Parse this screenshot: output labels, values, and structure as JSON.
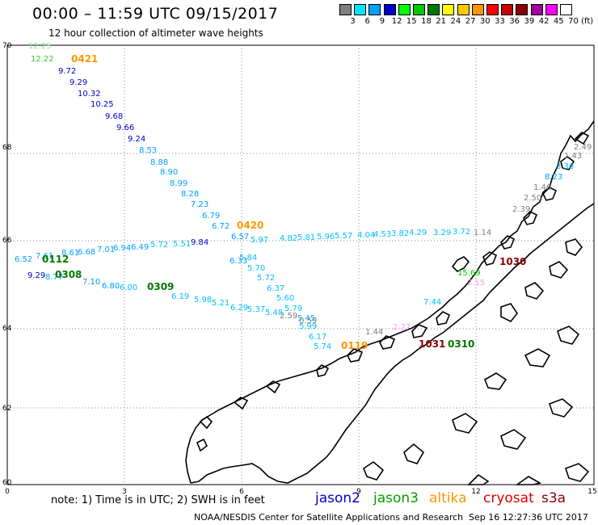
{
  "header": {
    "title": "00:00 – 11:59 UTC 09/15/2017",
    "subtitle": "12 hour collection of altimeter wave heights"
  },
  "legend": {
    "unit": "(ft)",
    "bins": [
      {
        "label": "3",
        "color": "#7f7f7f"
      },
      {
        "label": "6",
        "color": "#00e5ff"
      },
      {
        "label": "9",
        "color": "#00a0ff"
      },
      {
        "label": "12",
        "color": "#0000cd"
      },
      {
        "label": "15",
        "color": "#00ff00"
      },
      {
        "label": "18",
        "color": "#00c800"
      },
      {
        "label": "21",
        "color": "#007800"
      },
      {
        "label": "24",
        "color": "#ffff00"
      },
      {
        "label": "27",
        "color": "#ffc800"
      },
      {
        "label": "30",
        "color": "#ff9600"
      },
      {
        "label": "33",
        "color": "#ff0000"
      },
      {
        "label": "36",
        "color": "#c80000"
      },
      {
        "label": "39",
        "color": "#8b0000"
      },
      {
        "label": "42",
        "color": "#a000a0"
      },
      {
        "label": "45",
        "color": "#ff00ff"
      },
      {
        "label": "70",
        "color": "#ffffff"
      }
    ]
  },
  "axes": {
    "x_ticks": [
      "0",
      "3",
      "6",
      "9",
      "12",
      "15"
    ],
    "y_ticks": [
      "70",
      "68",
      "66",
      "64",
      "62",
      "60"
    ]
  },
  "passes": [
    {
      "label": "0421",
      "color": "#ff9600"
    },
    {
      "label": "0420",
      "color": "#ff9600"
    },
    {
      "label": "0112",
      "color": "#007800"
    },
    {
      "label": "0308",
      "color": "#007800"
    },
    {
      "label": "0309",
      "color": "#007800"
    },
    {
      "label": "0310",
      "color": "#007800"
    },
    {
      "label": "0119",
      "color": "#ff9600"
    },
    {
      "label": "1031",
      "color": "#8b0000"
    },
    {
      "label": "1030",
      "color": "#8b0000"
    }
  ],
  "readings": [
    {
      "v": "12.25",
      "color": "#90ee90"
    },
    {
      "v": "12.22",
      "color": "#32cd32"
    },
    {
      "v": "9.72",
      "color": "#0000cd"
    },
    {
      "v": "9.29",
      "color": "#0000cd"
    },
    {
      "v": "10.32",
      "color": "#0000cd"
    },
    {
      "v": "10.25",
      "color": "#0000cd"
    },
    {
      "v": "9.68",
      "color": "#0000cd"
    },
    {
      "v": "9.66",
      "color": "#0000cd"
    },
    {
      "v": "9.24",
      "color": "#0000cd"
    },
    {
      "v": "8.53",
      "color": "#00a0ff"
    },
    {
      "v": "8.88",
      "color": "#00a0ff"
    },
    {
      "v": "8.90",
      "color": "#00a0ff"
    },
    {
      "v": "8.99",
      "color": "#00a0ff"
    },
    {
      "v": "8.28",
      "color": "#00a0ff"
    },
    {
      "v": "7.23",
      "color": "#00a0ff"
    },
    {
      "v": "6.79",
      "color": "#00a0ff"
    },
    {
      "v": "6.72",
      "color": "#00a0ff"
    },
    {
      "v": "6.57",
      "color": "#00a0ff"
    },
    {
      "v": "6.33",
      "color": "#00a0ff"
    },
    {
      "v": "5.84",
      "color": "#00bfff"
    },
    {
      "v": "5.70",
      "color": "#00bfff"
    },
    {
      "v": "5.72",
      "color": "#00bfff"
    },
    {
      "v": "6.37",
      "color": "#00bfff"
    },
    {
      "v": "5.60",
      "color": "#00bfff"
    },
    {
      "v": "5.79",
      "color": "#00bfff"
    },
    {
      "v": "5.45",
      "color": "#00bfff"
    },
    {
      "v": "5.99",
      "color": "#00bfff"
    },
    {
      "v": "6.17",
      "color": "#00bfff"
    },
    {
      "v": "5.74",
      "color": "#00bfff"
    },
    {
      "v": "5.97",
      "color": "#00bfff"
    },
    {
      "v": "4.82",
      "color": "#00bfff"
    },
    {
      "v": "5.81",
      "color": "#00bfff"
    },
    {
      "v": "5.96",
      "color": "#00bfff"
    },
    {
      "v": "5.57",
      "color": "#00bfff"
    },
    {
      "v": "4.04",
      "color": "#00bfff"
    },
    {
      "v": "4.53",
      "color": "#00bfff"
    },
    {
      "v": "3.82",
      "color": "#00bfff"
    },
    {
      "v": "4.29",
      "color": "#00bfff"
    },
    {
      "v": "3.29",
      "color": "#00bfff"
    },
    {
      "v": "3.72",
      "color": "#00bfff"
    },
    {
      "v": "1.14",
      "color": "#7f7f7f"
    },
    {
      "v": "6.52",
      "color": "#00a0ff"
    },
    {
      "v": "7.61",
      "color": "#00a0ff"
    },
    {
      "v": "8.61",
      "color": "#00a0ff"
    },
    {
      "v": "6.68",
      "color": "#00a0ff"
    },
    {
      "v": "7.01",
      "color": "#00a0ff"
    },
    {
      "v": "6.94",
      "color": "#00a0ff"
    },
    {
      "v": "6.49",
      "color": "#00a0ff"
    },
    {
      "v": "5.72",
      "color": "#00bfff"
    },
    {
      "v": "5.51",
      "color": "#00bfff"
    },
    {
      "v": "9.84",
      "color": "#0000cd"
    },
    {
      "v": "9.29",
      "color": "#0000cd"
    },
    {
      "v": "8.77",
      "color": "#00a0ff"
    },
    {
      "v": "7.10",
      "color": "#00a0ff"
    },
    {
      "v": "6.80",
      "color": "#00a0ff"
    },
    {
      "v": "6.00",
      "color": "#00bfff"
    },
    {
      "v": "6.19",
      "color": "#00bfff"
    },
    {
      "v": "5.98",
      "color": "#00bfff"
    },
    {
      "v": "5.21",
      "color": "#00bfff"
    },
    {
      "v": "6.29",
      "color": "#00bfff"
    },
    {
      "v": "5.37",
      "color": "#00bfff"
    },
    {
      "v": "5.48",
      "color": "#00bfff"
    },
    {
      "v": "2.59",
      "color": "#7f7f7f"
    },
    {
      "v": "0.59",
      "color": "#7f7f7f"
    },
    {
      "v": "1.44",
      "color": "#7f7f7f"
    },
    {
      "v": "2.49",
      "color": "#7f7f7f"
    },
    {
      "v": "1.43",
      "color": "#7f7f7f"
    },
    {
      "v": "3.36",
      "color": "#00bfff"
    },
    {
      "v": "8.23",
      "color": "#00a0ff"
    },
    {
      "v": "1.46",
      "color": "#7f7f7f"
    },
    {
      "v": "2.50",
      "color": "#7f7f7f"
    },
    {
      "v": "2.39",
      "color": "#7f7f7f"
    },
    {
      "v": "15.69",
      "color": "#00c800"
    },
    {
      "v": "2.15",
      "color": "#ff99ff"
    },
    {
      "v": "7.44",
      "color": "#00bfff"
    },
    {
      "v": "2.27",
      "color": "#ff99ff"
    }
  ],
  "footer": {
    "note": "note:  1) Time is in UTC;  2) SWH is in feet",
    "satellites": [
      {
        "name": "jason2",
        "color": "#0000cd"
      },
      {
        "name": "jason3",
        "color": "#00a000"
      },
      {
        "name": "altika",
        "color": "#ff9600"
      },
      {
        "name": "cryosat",
        "color": "#e00000"
      },
      {
        "name": "s3a",
        "color": "#8b0000"
      }
    ],
    "organization": "NOAA/NESDIS Center for Satellite Applications and Research",
    "generated": "Sep 16 12:27:36 UTC 2017"
  }
}
